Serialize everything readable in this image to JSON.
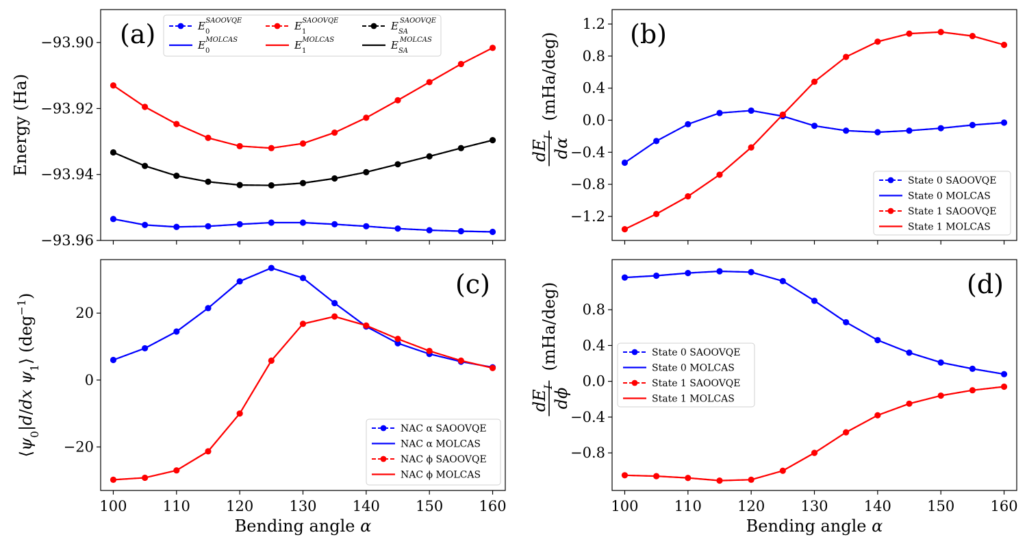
{
  "figure": {
    "shared_xlabel_prefix": "Bending angle ",
    "shared_xlabel_symbol": "α"
  },
  "chart_data": [
    {
      "id": "a",
      "panel_label": "(a)",
      "type": "line",
      "title": "",
      "ylabel": "Energy (Ha)",
      "xlabel": "",
      "xlim": [
        98,
        162
      ],
      "ylim": [
        -93.96,
        -93.89
      ],
      "xticks": [
        100,
        110,
        120,
        130,
        140,
        150,
        160
      ],
      "xtick_labels_shown": false,
      "yticks": [
        -93.96,
        -93.94,
        -93.92,
        -93.9
      ],
      "ytick_labels": [
        "−93.96",
        "−93.94",
        "−93.92",
        "−93.90"
      ],
      "legend_position": "top-center",
      "legend_columns": 3,
      "x": [
        100,
        105,
        110,
        115,
        120,
        125,
        130,
        135,
        140,
        145,
        150,
        155,
        160
      ],
      "series": [
        {
          "name": "E0 SAOOVQE",
          "base": "E",
          "sub": "0",
          "sup": "SAOOVQE",
          "color": "#0000ff",
          "style": "marker",
          "values": [
            -93.9535,
            -93.9553,
            -93.9559,
            -93.9557,
            -93.9551,
            -93.9546,
            -93.9546,
            -93.9551,
            -93.9557,
            -93.9564,
            -93.9569,
            -93.9572,
            -93.9574
          ]
        },
        {
          "name": "E0 MOLCAS",
          "base": "E",
          "sub": "0",
          "sup": "MOLCAS",
          "color": "#0000ff",
          "style": "line",
          "values": [
            -93.9535,
            -93.9553,
            -93.9559,
            -93.9557,
            -93.9551,
            -93.9546,
            -93.9546,
            -93.9551,
            -93.9557,
            -93.9564,
            -93.9569,
            -93.9572,
            -93.9574
          ]
        },
        {
          "name": "E1 SAOOVQE",
          "base": "E",
          "sub": "1",
          "sup": "SAOOVQE",
          "color": "#ff0000",
          "style": "marker",
          "values": [
            -93.913,
            -93.9195,
            -93.9247,
            -93.9289,
            -93.9314,
            -93.932,
            -93.9306,
            -93.9273,
            -93.9228,
            -93.9175,
            -93.912,
            -93.9065,
            -93.9016
          ]
        },
        {
          "name": "E1 MOLCAS",
          "base": "E",
          "sub": "1",
          "sup": "MOLCAS",
          "color": "#ff0000",
          "style": "line",
          "values": [
            -93.913,
            -93.9195,
            -93.9247,
            -93.9289,
            -93.9314,
            -93.932,
            -93.9306,
            -93.9273,
            -93.9228,
            -93.9175,
            -93.912,
            -93.9065,
            -93.9016
          ]
        },
        {
          "name": "ESA SAOOVQE",
          "base": "E",
          "sub": "SA",
          "sup": "SAOOVQE",
          "color": "#000000",
          "style": "marker",
          "values": [
            -93.9333,
            -93.9374,
            -93.9404,
            -93.9422,
            -93.9432,
            -93.9433,
            -93.9426,
            -93.9412,
            -93.9393,
            -93.9369,
            -93.9345,
            -93.932,
            -93.9296
          ]
        },
        {
          "name": "ESA MOLCAS",
          "base": "E",
          "sub": "SA",
          "sup": "MOLCAS",
          "color": "#000000",
          "style": "line",
          "values": [
            -93.9333,
            -93.9374,
            -93.9404,
            -93.9422,
            -93.9432,
            -93.9433,
            -93.9426,
            -93.9412,
            -93.9393,
            -93.9369,
            -93.9345,
            -93.932,
            -93.9296
          ]
        }
      ]
    },
    {
      "id": "b",
      "panel_label": "(b)",
      "type": "line",
      "title": "",
      "ylabel_tail": "(mHa/deg)",
      "ylabel_frac_num": "dE",
      "ylabel_frac_num_sub": "I",
      "ylabel_frac_den": "dα",
      "xlabel": "",
      "xlim": [
        98,
        162
      ],
      "ylim": [
        -1.5,
        1.38
      ],
      "xticks": [
        100,
        110,
        120,
        130,
        140,
        150,
        160
      ],
      "xtick_labels_shown": false,
      "yticks": [
        -1.2,
        -0.8,
        -0.4,
        0.0,
        0.4,
        0.8,
        1.2
      ],
      "ytick_labels": [
        "−1.2",
        "−0.8",
        "−0.4",
        "0.0",
        "0.4",
        "0.8",
        "1.2"
      ],
      "legend_position": "lower-right",
      "legend_columns": 1,
      "x": [
        100,
        105,
        110,
        115,
        120,
        125,
        130,
        135,
        140,
        145,
        150,
        155,
        160
      ],
      "series": [
        {
          "name": "State 0 SAOOVQE",
          "color": "#0000ff",
          "style": "marker",
          "values": [
            -0.53,
            -0.26,
            -0.05,
            0.09,
            0.12,
            0.05,
            -0.07,
            -0.13,
            -0.15,
            -0.13,
            -0.1,
            -0.06,
            -0.03
          ]
        },
        {
          "name": "State 0 MOLCAS",
          "color": "#0000ff",
          "style": "line",
          "values": [
            -0.53,
            -0.26,
            -0.05,
            0.09,
            0.12,
            0.05,
            -0.07,
            -0.13,
            -0.15,
            -0.13,
            -0.1,
            -0.06,
            -0.03
          ]
        },
        {
          "name": "State 1 SAOOVQE",
          "color": "#ff0000",
          "style": "marker",
          "values": [
            -1.36,
            -1.17,
            -0.95,
            -0.68,
            -0.34,
            0.07,
            0.48,
            0.79,
            0.98,
            1.08,
            1.1,
            1.05,
            0.94
          ]
        },
        {
          "name": "State 1 MOLCAS",
          "color": "#ff0000",
          "style": "line",
          "values": [
            -1.36,
            -1.17,
            -0.95,
            -0.68,
            -0.34,
            0.07,
            0.48,
            0.79,
            0.98,
            1.08,
            1.1,
            1.05,
            0.94
          ]
        }
      ]
    },
    {
      "id": "c",
      "panel_label": "(c)",
      "type": "line",
      "title": "",
      "ylabel_tail": "(deg",
      "ylabel_tail_sup": "−1",
      "ylabel_tail_end": ")",
      "xlabel": "Bending angle α",
      "xlim": [
        98,
        162
      ],
      "ylim": [
        -33,
        36
      ],
      "xticks": [
        100,
        110,
        120,
        130,
        140,
        150,
        160
      ],
      "xtick_labels_shown": true,
      "xtick_labels": [
        "100",
        "110",
        "120",
        "130",
        "140",
        "150",
        "160"
      ],
      "yticks": [
        -20,
        0,
        20
      ],
      "ytick_labels": [
        "−20",
        "0",
        "20"
      ],
      "legend_position": "lower-right",
      "legend_columns": 1,
      "x": [
        100,
        105,
        110,
        115,
        120,
        125,
        130,
        135,
        140,
        145,
        150,
        155,
        160
      ],
      "series": [
        {
          "name": "NAC α SAOOVQE",
          "color": "#0000ff",
          "style": "marker",
          "values": [
            6.0,
            9.5,
            14.5,
            21.5,
            29.5,
            33.5,
            30.5,
            23.0,
            16.0,
            11.0,
            7.8,
            5.5,
            3.8
          ]
        },
        {
          "name": "NAC α MOLCAS",
          "color": "#0000ff",
          "style": "line",
          "values": [
            6.0,
            9.5,
            14.5,
            21.5,
            29.5,
            33.5,
            30.5,
            23.0,
            16.0,
            11.0,
            7.8,
            5.5,
            3.8
          ]
        },
        {
          "name": "NAC ϕ SAOOVQE",
          "color": "#ff0000",
          "style": "marker",
          "values": [
            -29.8,
            -29.2,
            -27.0,
            -21.3,
            -10.0,
            5.8,
            16.8,
            19.0,
            16.3,
            12.3,
            8.7,
            5.8,
            3.6
          ]
        },
        {
          "name": "NAC ϕ MOLCAS",
          "color": "#ff0000",
          "style": "line",
          "values": [
            -29.8,
            -29.2,
            -27.0,
            -21.3,
            -10.0,
            5.8,
            16.8,
            19.0,
            16.3,
            12.3,
            8.7,
            5.8,
            3.6
          ]
        }
      ]
    },
    {
      "id": "d",
      "panel_label": "(d)",
      "type": "line",
      "title": "",
      "ylabel_tail": "(mHa/deg)",
      "ylabel_frac_num": "dE",
      "ylabel_frac_num_sub": "I",
      "ylabel_frac_den": "dϕ",
      "xlabel": "Bending angle α",
      "xlim": [
        98,
        162
      ],
      "ylim": [
        -1.22,
        1.36
      ],
      "xticks": [
        100,
        110,
        120,
        130,
        140,
        150,
        160
      ],
      "xtick_labels_shown": true,
      "xtick_labels": [
        "100",
        "110",
        "120",
        "130",
        "140",
        "150",
        "160"
      ],
      "yticks": [
        -0.8,
        -0.4,
        0.0,
        0.4,
        0.8
      ],
      "ytick_labels": [
        "−0.8",
        "−0.4",
        "0.0",
        "0.4",
        "0.8"
      ],
      "legend_position": "center-left",
      "legend_columns": 1,
      "x": [
        100,
        105,
        110,
        115,
        120,
        125,
        130,
        135,
        140,
        145,
        150,
        155,
        160
      ],
      "series": [
        {
          "name": "State 0 SAOOVQE",
          "color": "#0000ff",
          "style": "marker",
          "values": [
            1.16,
            1.18,
            1.21,
            1.23,
            1.22,
            1.12,
            0.9,
            0.66,
            0.46,
            0.32,
            0.21,
            0.14,
            0.08
          ]
        },
        {
          "name": "State 0 MOLCAS",
          "color": "#0000ff",
          "style": "line",
          "values": [
            1.16,
            1.18,
            1.21,
            1.23,
            1.22,
            1.12,
            0.9,
            0.66,
            0.46,
            0.32,
            0.21,
            0.14,
            0.08
          ]
        },
        {
          "name": "State 1 SAOOVQE",
          "color": "#ff0000",
          "style": "marker",
          "values": [
            -1.05,
            -1.06,
            -1.08,
            -1.11,
            -1.1,
            -1.0,
            -0.8,
            -0.57,
            -0.38,
            -0.25,
            -0.16,
            -0.1,
            -0.06
          ]
        },
        {
          "name": "State 1 MOLCAS",
          "color": "#ff0000",
          "style": "line",
          "values": [
            -1.05,
            -1.06,
            -1.08,
            -1.11,
            -1.1,
            -1.0,
            -0.8,
            -0.57,
            -0.38,
            -0.25,
            -0.16,
            -0.1,
            -0.06
          ]
        }
      ]
    }
  ]
}
